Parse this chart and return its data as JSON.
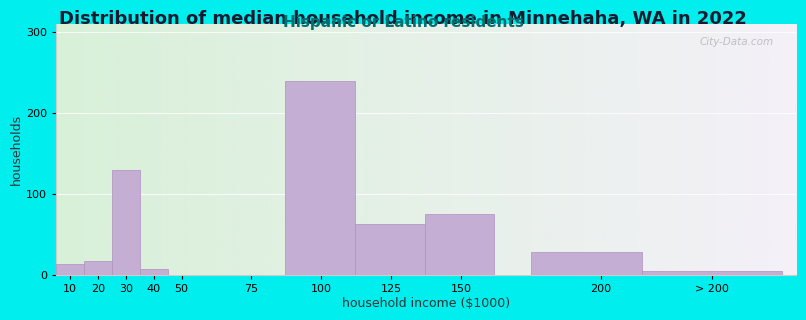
{
  "title": "Distribution of median household income in Minnehaha, WA in 2022",
  "subtitle": "Hispanic or Latino residents",
  "xlabel": "household income ($1000)",
  "ylabel": "households",
  "background_color": "#00EEEE",
  "plot_bg_gradient_left": "#d8f0d8",
  "plot_bg_gradient_right": "#f4f0f8",
  "bar_color": "#c4aed4",
  "bar_edge_color": "#b090c0",
  "categories": [
    "10",
    "20",
    "30",
    "40",
    "50",
    "75",
    "100",
    "125",
    "150",
    "200",
    "> 200"
  ],
  "x_positions": [
    10,
    20,
    30,
    40,
    50,
    75,
    100,
    125,
    150,
    200,
    240
  ],
  "bar_lefts": [
    5,
    15,
    25,
    35,
    45,
    62,
    87,
    112,
    137,
    175,
    215
  ],
  "bar_rights": [
    15,
    25,
    35,
    45,
    55,
    87,
    112,
    137,
    162,
    215,
    265
  ],
  "values": [
    14,
    18,
    130,
    8,
    0,
    0,
    240,
    63,
    75,
    28,
    5
  ],
  "xlim": [
    5,
    270
  ],
  "ylim": [
    0,
    310
  ],
  "yticks": [
    0,
    100,
    200,
    300
  ],
  "title_fontsize": 13,
  "subtitle_fontsize": 11,
  "subtitle_color": "#007070",
  "axis_label_fontsize": 9,
  "tick_fontsize": 8,
  "watermark_text": "City-Data.com"
}
